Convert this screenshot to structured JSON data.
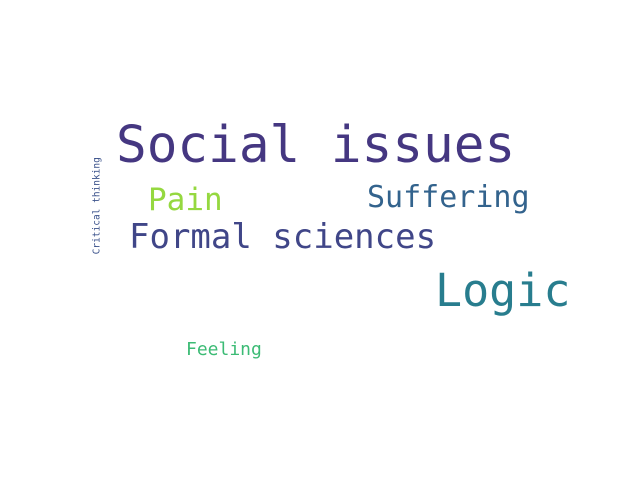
{
  "words": [
    {
      "id": "social",
      "text": "Social issues",
      "color": "#453781"
    },
    {
      "id": "suffering",
      "text": "Suffering",
      "color": "#33638d"
    },
    {
      "id": "pain",
      "text": "Pain",
      "color": "#95d840"
    },
    {
      "id": "formal",
      "text": "Formal sciences",
      "color": "#404688"
    },
    {
      "id": "logic",
      "text": "Logic",
      "color": "#287d8e"
    },
    {
      "id": "feeling",
      "text": "Feeling",
      "color": "#3cbb75"
    },
    {
      "id": "critical",
      "text": "Critical thinking",
      "color": "#3b528b"
    }
  ]
}
